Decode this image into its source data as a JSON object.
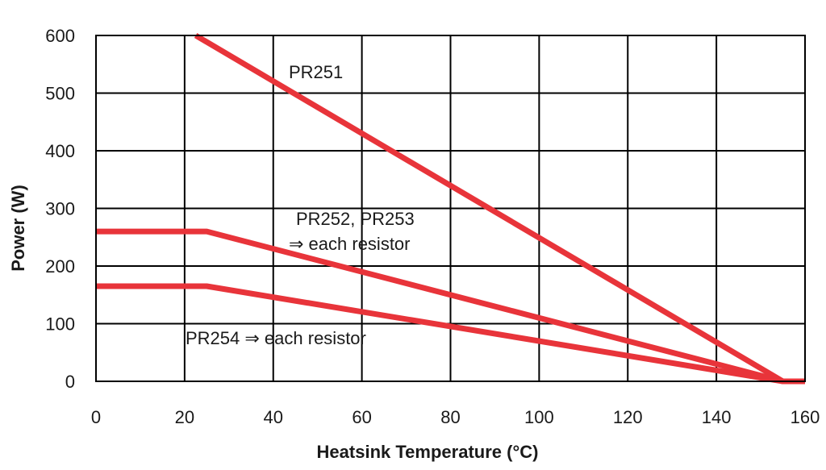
{
  "chart_data": {
    "type": "line",
    "title": "",
    "xlabel": "Heatsink Temperature (°C)",
    "ylabel": "Power  (W)",
    "xlim": [
      0,
      160
    ],
    "ylim": [
      0,
      600
    ],
    "x_ticks": [
      "0",
      "20",
      "40",
      "60",
      "80",
      "100",
      "120",
      "140",
      "160"
    ],
    "y_ticks": [
      "0",
      "100",
      "200",
      "300",
      "400",
      "500",
      "600"
    ],
    "grid": true,
    "line_color": "#e8343a",
    "series": [
      {
        "x": [
          22.5,
          155,
          160
        ],
        "y": [
          600,
          0,
          0
        ]
      },
      {
        "x": [
          0,
          25,
          155,
          160
        ],
        "y": [
          260,
          260,
          0,
          0
        ]
      },
      {
        "x": [
          0,
          25,
          155,
          160
        ],
        "y": [
          165,
          165,
          0,
          0
        ]
      }
    ],
    "annotations": [
      {
        "text": "PR251"
      },
      {
        "text": "PR252, PR253"
      },
      {
        "text": "⇒ each resistor"
      },
      {
        "text": "PR254 ⇒ each resistor"
      }
    ]
  }
}
